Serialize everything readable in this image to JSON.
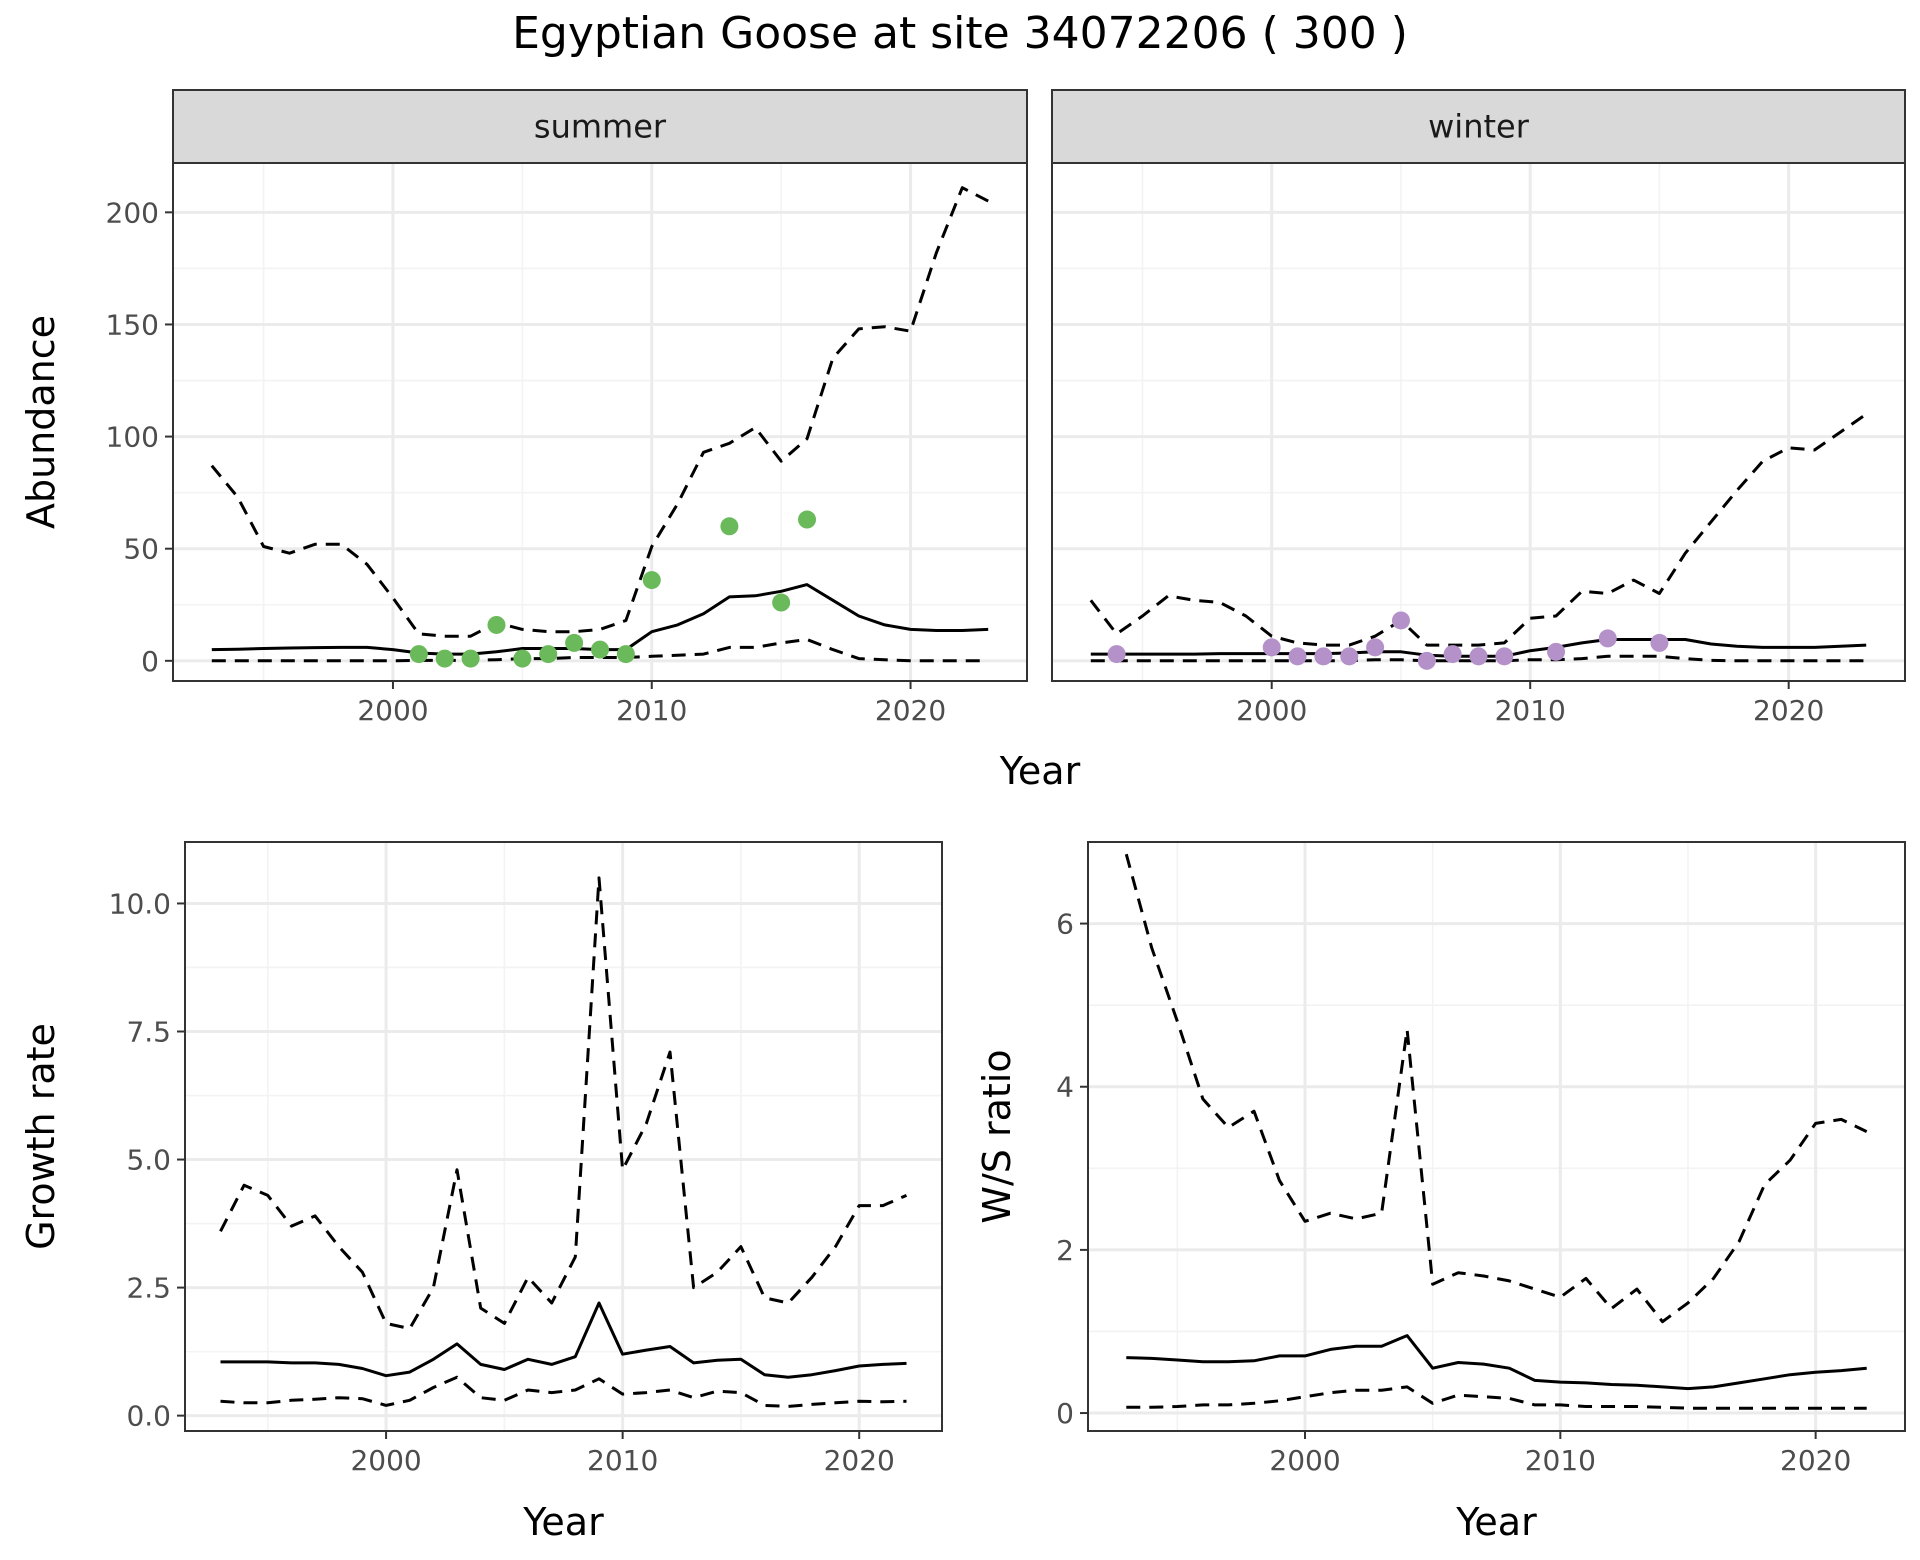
{
  "title": "Egyptian Goose at site 34072206 ( 300 )",
  "colors": {
    "summer_points": "#6ABA5B",
    "winter_points": "#B491C8"
  },
  "chart_data": [
    {
      "type": "line",
      "panel": "summer",
      "strip": "summer",
      "xlabel": "Year",
      "ylabel": "Abundance",
      "xlim": [
        1991.5,
        2024.5
      ],
      "ylim": [
        -9,
        222
      ],
      "xticks": [
        2000,
        2010,
        2020
      ],
      "yticks": [
        0,
        50,
        100,
        150,
        200
      ],
      "estimate": {
        "x": [
          1993,
          1994,
          1995,
          1996,
          1997,
          1998,
          1999,
          2000,
          2001,
          2002,
          2003,
          2004,
          2005,
          2006,
          2007,
          2008,
          2009,
          2010,
          2011,
          2012,
          2013,
          2014,
          2015,
          2016,
          2017,
          2018,
          2019,
          2020,
          2021,
          2022,
          2023
        ],
        "y": [
          5,
          5.2,
          5.5,
          5.7,
          5.9,
          6,
          6,
          5,
          3.5,
          3,
          3,
          4,
          5.5,
          5.5,
          5.5,
          5,
          5,
          13,
          16,
          21,
          28.5,
          29,
          31,
          34,
          27,
          20,
          16,
          14,
          13.5,
          13.5,
          14
        ]
      },
      "upper": {
        "x": [
          1993,
          1994,
          1995,
          1996,
          1997,
          1998,
          1999,
          2000,
          2001,
          2002,
          2003,
          2004,
          2005,
          2006,
          2007,
          2008,
          2009,
          2010,
          2011,
          2012,
          2013,
          2014,
          2015,
          2016,
          2017,
          2018,
          2019,
          2020,
          2021,
          2022,
          2023
        ],
        "y": [
          87,
          73,
          51,
          48,
          52,
          52,
          43,
          28,
          12,
          11,
          11,
          17,
          14,
          13,
          13,
          14,
          18,
          51,
          70,
          93,
          97,
          104,
          89,
          99,
          135,
          148,
          149,
          147,
          182,
          211,
          205
        ]
      },
      "lower": {
        "x": [
          1993,
          1994,
          1995,
          1996,
          1997,
          1998,
          1999,
          2000,
          2001,
          2002,
          2003,
          2004,
          2005,
          2006,
          2007,
          2008,
          2009,
          2010,
          2011,
          2012,
          2013,
          2014,
          2015,
          2016,
          2017,
          2018,
          2019,
          2020,
          2021,
          2022,
          2023
        ],
        "y": [
          0,
          0,
          0,
          0,
          0,
          0,
          0,
          0,
          0.2,
          0.2,
          0.2,
          0.5,
          1,
          1,
          1.5,
          1.5,
          1.5,
          2,
          2.5,
          3,
          6,
          6,
          8,
          9.5,
          5,
          1,
          0.5,
          0,
          0,
          0,
          0
        ]
      },
      "points": {
        "x": [
          2001,
          2002,
          2003,
          2004,
          2005,
          2006,
          2007,
          2008,
          2009,
          2010,
          2013,
          2015,
          2016
        ],
        "y": [
          3,
          1,
          1,
          16,
          1,
          3,
          8,
          5,
          3,
          36,
          60,
          26,
          63
        ]
      }
    },
    {
      "type": "line",
      "panel": "winter",
      "strip": "winter",
      "xlabel": "Year",
      "ylabel": "Abundance",
      "xlim": [
        1991.5,
        2024.5
      ],
      "ylim": [
        -9,
        222
      ],
      "xticks": [
        2000,
        2010,
        2020
      ],
      "yticks": [
        0,
        50,
        100,
        150,
        200
      ],
      "estimate": {
        "x": [
          1993,
          1994,
          1995,
          1996,
          1997,
          1998,
          1999,
          2000,
          2001,
          2002,
          2003,
          2004,
          2005,
          2006,
          2007,
          2008,
          2009,
          2010,
          2011,
          2012,
          2013,
          2014,
          2015,
          2016,
          2017,
          2018,
          2019,
          2020,
          2021,
          2022,
          2023
        ],
        "y": [
          3,
          3,
          3,
          3,
          3,
          3.2,
          3.2,
          3.2,
          3.2,
          3.2,
          3.5,
          4,
          4,
          2.5,
          2,
          2,
          2,
          4.5,
          6,
          8,
          9.5,
          9.5,
          9.5,
          9.5,
          7.5,
          6.5,
          6,
          6,
          6,
          6.5,
          7
        ]
      },
      "upper": {
        "x": [
          1993,
          1994,
          1995,
          1996,
          1997,
          1998,
          1999,
          2000,
          2001,
          2002,
          2003,
          2004,
          2005,
          2006,
          2007,
          2008,
          2009,
          2010,
          2011,
          2012,
          2013,
          2014,
          2015,
          2016,
          2017,
          2018,
          2019,
          2020,
          2021,
          2022,
          2023
        ],
        "y": [
          27,
          12,
          20,
          29,
          27,
          26,
          20,
          11,
          8,
          7,
          7,
          11,
          18,
          7,
          7,
          7,
          8,
          19,
          20,
          31,
          30,
          36,
          30,
          48,
          62,
          76,
          89,
          95,
          94,
          102,
          110
        ]
      },
      "lower": {
        "x": [
          1993,
          1994,
          1995,
          1996,
          1997,
          1998,
          1999,
          2000,
          2001,
          2002,
          2003,
          2004,
          2005,
          2006,
          2007,
          2008,
          2009,
          2010,
          2011,
          2012,
          2013,
          2014,
          2015,
          2016,
          2017,
          2018,
          2019,
          2020,
          2021,
          2022,
          2023
        ],
        "y": [
          0,
          0,
          0,
          0,
          0,
          0,
          0,
          0,
          0,
          0,
          0,
          0.5,
          0.5,
          0,
          0,
          0,
          0,
          0.5,
          0.5,
          1,
          2,
          2,
          2,
          1,
          0.2,
          0,
          0,
          0,
          0,
          0,
          0
        ]
      },
      "points": {
        "x": [
          1994,
          2000,
          2001,
          2002,
          2003,
          2004,
          2005,
          2006,
          2007,
          2008,
          2009,
          2011,
          2013,
          2015
        ],
        "y": [
          3,
          6,
          2,
          2,
          2,
          6,
          18,
          0,
          3,
          2,
          2,
          4,
          10,
          8
        ]
      }
    },
    {
      "type": "line",
      "panel": "growth",
      "xlabel": "Year",
      "ylabel": "Growth rate",
      "xlim": [
        1991.5,
        2023.5
      ],
      "ylim": [
        -0.3,
        11.2
      ],
      "xticks": [
        2000,
        2010,
        2020
      ],
      "yticks": [
        0.0,
        2.5,
        5.0,
        7.5,
        10.0
      ],
      "ytick_labels": [
        "0.0",
        "2.5",
        "5.0",
        "7.5",
        "10.0"
      ],
      "estimate": {
        "x": [
          1993,
          1994,
          1995,
          1996,
          1997,
          1998,
          1999,
          2000,
          2001,
          2002,
          2003,
          2004,
          2005,
          2006,
          2007,
          2008,
          2009,
          2010,
          2011,
          2012,
          2013,
          2014,
          2015,
          2016,
          2017,
          2018,
          2019,
          2020,
          2021,
          2022
        ],
        "y": [
          1.05,
          1.05,
          1.05,
          1.03,
          1.03,
          1.0,
          0.92,
          0.78,
          0.85,
          1.1,
          1.4,
          1.0,
          0.9,
          1.1,
          1.0,
          1.15,
          2.2,
          1.2,
          1.28,
          1.35,
          1.03,
          1.08,
          1.1,
          0.8,
          0.75,
          0.8,
          0.88,
          0.97,
          1.0,
          1.02
        ]
      },
      "upper": {
        "x": [
          1993,
          1994,
          1995,
          1996,
          1997,
          1998,
          1999,
          2000,
          2001,
          2002,
          2003,
          2004,
          2005,
          2006,
          2007,
          2008,
          2009,
          2010,
          2011,
          2012,
          2013,
          2014,
          2015,
          2016,
          2017,
          2018,
          2019,
          2020,
          2021,
          2022
        ],
        "y": [
          3.6,
          4.5,
          4.3,
          3.7,
          3.9,
          3.3,
          2.8,
          1.8,
          1.7,
          2.5,
          4.8,
          2.1,
          1.8,
          2.7,
          2.2,
          3.1,
          10.5,
          4.8,
          5.7,
          7.1,
          2.5,
          2.8,
          3.3,
          2.3,
          2.2,
          2.7,
          3.3,
          4.1,
          4.1,
          4.3
        ]
      },
      "lower": {
        "x": [
          1993,
          1994,
          1995,
          1996,
          1997,
          1998,
          1999,
          2000,
          2001,
          2002,
          2003,
          2004,
          2005,
          2006,
          2007,
          2008,
          2009,
          2010,
          2011,
          2012,
          2013,
          2014,
          2015,
          2016,
          2017,
          2018,
          2019,
          2020,
          2021,
          2022
        ],
        "y": [
          0.28,
          0.25,
          0.25,
          0.3,
          0.32,
          0.35,
          0.33,
          0.2,
          0.3,
          0.55,
          0.75,
          0.35,
          0.3,
          0.5,
          0.45,
          0.5,
          0.72,
          0.42,
          0.45,
          0.5,
          0.35,
          0.48,
          0.45,
          0.2,
          0.18,
          0.22,
          0.25,
          0.28,
          0.27,
          0.28
        ]
      }
    },
    {
      "type": "line",
      "panel": "ratio",
      "xlabel": "Year",
      "ylabel": "W/S ratio",
      "xlim": [
        1991.5,
        2023.5
      ],
      "ylim": [
        -0.22,
        7.0
      ],
      "xticks": [
        2000,
        2010,
        2020
      ],
      "yticks": [
        0,
        2,
        4,
        6
      ],
      "estimate": {
        "x": [
          1993,
          1994,
          1995,
          1996,
          1997,
          1998,
          1999,
          2000,
          2001,
          2002,
          2003,
          2004,
          2005,
          2006,
          2007,
          2008,
          2009,
          2010,
          2011,
          2012,
          2013,
          2014,
          2015,
          2016,
          2017,
          2018,
          2019,
          2020,
          2021,
          2022
        ],
        "y": [
          0.68,
          0.67,
          0.65,
          0.63,
          0.63,
          0.64,
          0.7,
          0.7,
          0.78,
          0.82,
          0.82,
          0.95,
          0.55,
          0.62,
          0.6,
          0.55,
          0.4,
          0.38,
          0.37,
          0.35,
          0.34,
          0.32,
          0.3,
          0.32,
          0.37,
          0.42,
          0.47,
          0.5,
          0.52,
          0.55
        ]
      },
      "upper": {
        "x": [
          1993,
          1994,
          1995,
          1996,
          1997,
          1998,
          1999,
          2000,
          2001,
          2002,
          2003,
          2004,
          2005,
          2006,
          2007,
          2008,
          2009,
          2010,
          2011,
          2012,
          2013,
          2014,
          2015,
          2016,
          2017,
          2018,
          2019,
          2020,
          2021,
          2022
        ],
        "y": [
          6.85,
          5.7,
          4.8,
          3.85,
          3.5,
          3.7,
          2.85,
          2.35,
          2.45,
          2.38,
          2.45,
          4.7,
          1.58,
          1.72,
          1.68,
          1.62,
          1.52,
          1.42,
          1.65,
          1.28,
          1.52,
          1.12,
          1.35,
          1.65,
          2.1,
          2.8,
          3.1,
          3.55,
          3.6,
          3.45
        ]
      },
      "lower": {
        "x": [
          1993,
          1994,
          1995,
          1996,
          1997,
          1998,
          1999,
          2000,
          2001,
          2002,
          2003,
          2004,
          2005,
          2006,
          2007,
          2008,
          2009,
          2010,
          2011,
          2012,
          2013,
          2014,
          2015,
          2016,
          2017,
          2018,
          2019,
          2020,
          2021,
          2022
        ],
        "y": [
          0.07,
          0.07,
          0.08,
          0.1,
          0.1,
          0.12,
          0.15,
          0.2,
          0.25,
          0.28,
          0.28,
          0.32,
          0.12,
          0.22,
          0.2,
          0.18,
          0.1,
          0.1,
          0.08,
          0.08,
          0.08,
          0.07,
          0.06,
          0.06,
          0.06,
          0.06,
          0.06,
          0.06,
          0.06,
          0.06
        ]
      }
    }
  ]
}
